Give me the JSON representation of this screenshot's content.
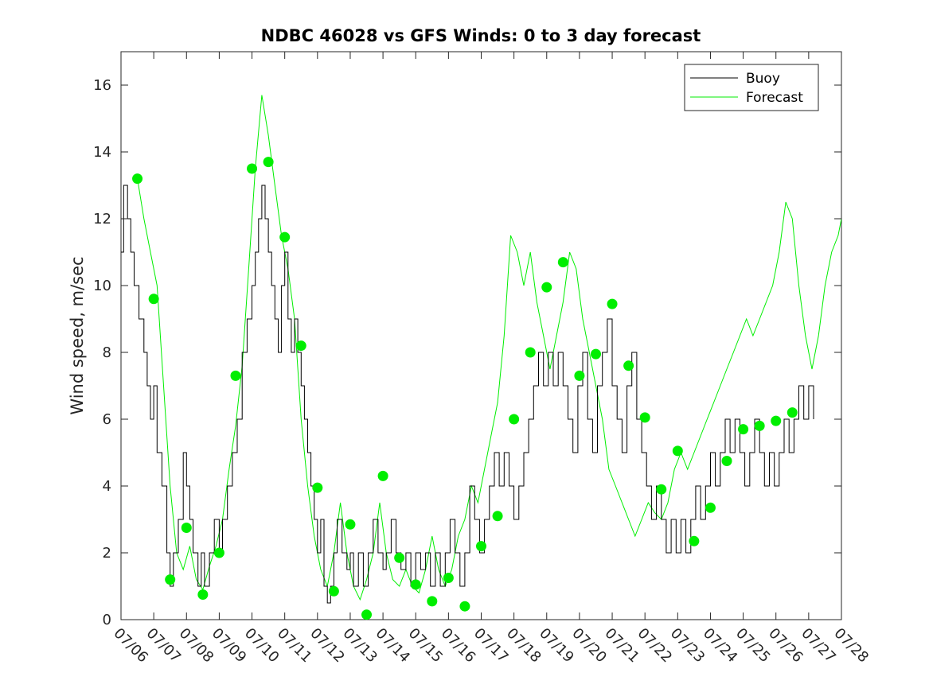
{
  "chart_data": {
    "type": "line",
    "title": "NDBC 46028 vs GFS Winds: 0 to 3 day forecast",
    "ylabel": "Wind speed, m/sec",
    "xlabel": "",
    "xlim": [
      0,
      22
    ],
    "ylim": [
      0,
      17
    ],
    "x_tick_labels": [
      "07/06",
      "07/07",
      "07/08",
      "07/09",
      "07/10",
      "07/11",
      "07/12",
      "07/13",
      "07/14",
      "07/15",
      "07/16",
      "07/17",
      "07/18",
      "07/19",
      "07/20",
      "07/21",
      "07/22",
      "07/23",
      "07/24",
      "07/25",
      "07/26",
      "07/27",
      "07/28"
    ],
    "y_ticks": [
      0,
      2,
      4,
      6,
      8,
      10,
      12,
      14,
      16
    ],
    "grid": false,
    "legend": {
      "position": "top-right",
      "entries": [
        "Buoy",
        "Forecast"
      ]
    },
    "colors": {
      "buoy": "#000000",
      "forecast": "#00ee00",
      "markers": "#00ee00"
    },
    "series": [
      {
        "name": "Buoy",
        "points": [
          [
            0.0,
            11
          ],
          [
            0.08,
            13
          ],
          [
            0.2,
            12
          ],
          [
            0.3,
            11
          ],
          [
            0.4,
            10
          ],
          [
            0.55,
            9
          ],
          [
            0.7,
            8
          ],
          [
            0.8,
            7
          ],
          [
            0.9,
            6
          ],
          [
            1.0,
            7
          ],
          [
            1.1,
            5
          ],
          [
            1.25,
            4
          ],
          [
            1.4,
            2
          ],
          [
            1.5,
            1
          ],
          [
            1.6,
            2
          ],
          [
            1.75,
            3
          ],
          [
            1.9,
            5
          ],
          [
            2.0,
            4
          ],
          [
            2.1,
            3
          ],
          [
            2.2,
            2
          ],
          [
            2.35,
            1
          ],
          [
            2.45,
            2
          ],
          [
            2.55,
            1
          ],
          [
            2.7,
            2
          ],
          [
            2.85,
            3
          ],
          [
            3.0,
            2
          ],
          [
            3.1,
            3
          ],
          [
            3.25,
            4
          ],
          [
            3.4,
            5
          ],
          [
            3.55,
            6
          ],
          [
            3.7,
            8
          ],
          [
            3.85,
            9
          ],
          [
            4.0,
            10
          ],
          [
            4.1,
            11
          ],
          [
            4.2,
            12
          ],
          [
            4.3,
            13
          ],
          [
            4.4,
            12
          ],
          [
            4.5,
            11
          ],
          [
            4.6,
            10
          ],
          [
            4.7,
            9
          ],
          [
            4.8,
            8
          ],
          [
            4.9,
            10
          ],
          [
            5.0,
            11
          ],
          [
            5.1,
            9
          ],
          [
            5.2,
            8
          ],
          [
            5.3,
            9
          ],
          [
            5.4,
            8
          ],
          [
            5.5,
            7
          ],
          [
            5.6,
            6
          ],
          [
            5.7,
            5
          ],
          [
            5.8,
            4
          ],
          [
            5.9,
            3
          ],
          [
            6.0,
            2
          ],
          [
            6.1,
            3
          ],
          [
            6.2,
            1
          ],
          [
            6.3,
            0.5
          ],
          [
            6.4,
            1
          ],
          [
            6.5,
            2
          ],
          [
            6.6,
            3
          ],
          [
            6.75,
            2
          ],
          [
            6.9,
            1.5
          ],
          [
            7.0,
            2
          ],
          [
            7.1,
            1
          ],
          [
            7.25,
            2
          ],
          [
            7.4,
            1
          ],
          [
            7.55,
            2
          ],
          [
            7.7,
            3
          ],
          [
            7.85,
            2
          ],
          [
            8.0,
            1.5
          ],
          [
            8.1,
            2
          ],
          [
            8.25,
            3
          ],
          [
            8.4,
            2
          ],
          [
            8.55,
            1.5
          ],
          [
            8.7,
            2
          ],
          [
            8.85,
            1
          ],
          [
            9.0,
            2
          ],
          [
            9.15,
            1.5
          ],
          [
            9.3,
            2
          ],
          [
            9.45,
            1
          ],
          [
            9.6,
            2
          ],
          [
            9.75,
            1
          ],
          [
            9.9,
            2
          ],
          [
            10.05,
            3
          ],
          [
            10.2,
            2
          ],
          [
            10.35,
            1
          ],
          [
            10.5,
            2
          ],
          [
            10.65,
            4
          ],
          [
            10.8,
            3
          ],
          [
            10.95,
            2
          ],
          [
            11.1,
            3
          ],
          [
            11.25,
            4
          ],
          [
            11.4,
            5
          ],
          [
            11.55,
            4
          ],
          [
            11.7,
            5
          ],
          [
            11.85,
            4
          ],
          [
            12.0,
            3
          ],
          [
            12.15,
            4
          ],
          [
            12.3,
            5
          ],
          [
            12.45,
            6
          ],
          [
            12.6,
            7
          ],
          [
            12.75,
            8
          ],
          [
            12.9,
            7
          ],
          [
            13.05,
            8
          ],
          [
            13.2,
            7
          ],
          [
            13.35,
            8
          ],
          [
            13.5,
            7
          ],
          [
            13.65,
            6
          ],
          [
            13.8,
            5
          ],
          [
            13.95,
            7
          ],
          [
            14.1,
            8
          ],
          [
            14.25,
            6
          ],
          [
            14.4,
            5
          ],
          [
            14.55,
            7
          ],
          [
            14.7,
            8
          ],
          [
            14.85,
            9
          ],
          [
            15.0,
            7
          ],
          [
            15.15,
            6
          ],
          [
            15.3,
            5
          ],
          [
            15.45,
            7
          ],
          [
            15.6,
            8
          ],
          [
            15.75,
            6
          ],
          [
            15.9,
            5
          ],
          [
            16.05,
            4
          ],
          [
            16.2,
            3
          ],
          [
            16.35,
            4
          ],
          [
            16.5,
            3
          ],
          [
            16.65,
            2
          ],
          [
            16.8,
            3
          ],
          [
            16.95,
            2
          ],
          [
            17.1,
            3
          ],
          [
            17.25,
            2
          ],
          [
            17.4,
            3
          ],
          [
            17.55,
            4
          ],
          [
            17.7,
            3
          ],
          [
            17.85,
            4
          ],
          [
            18.0,
            5
          ],
          [
            18.15,
            4
          ],
          [
            18.3,
            5
          ],
          [
            18.45,
            6
          ],
          [
            18.6,
            5
          ],
          [
            18.75,
            6
          ],
          [
            18.9,
            5
          ],
          [
            19.05,
            4
          ],
          [
            19.2,
            5
          ],
          [
            19.35,
            6
          ],
          [
            19.5,
            5
          ],
          [
            19.65,
            4
          ],
          [
            19.8,
            5
          ],
          [
            19.95,
            4
          ],
          [
            20.1,
            5
          ],
          [
            20.25,
            6
          ],
          [
            20.4,
            5
          ],
          [
            20.55,
            6
          ],
          [
            20.7,
            7
          ],
          [
            20.85,
            6
          ],
          [
            21.0,
            7
          ],
          [
            21.15,
            6
          ]
        ]
      },
      {
        "name": "Forecast",
        "points": [
          [
            0.5,
            13.2
          ],
          [
            0.7,
            12.0
          ],
          [
            0.9,
            11.0
          ],
          [
            1.1,
            10.0
          ],
          [
            1.3,
            7.0
          ],
          [
            1.5,
            4.0
          ],
          [
            1.7,
            2.0
          ],
          [
            1.9,
            1.5
          ],
          [
            2.1,
            2.2
          ],
          [
            2.3,
            1.2
          ],
          [
            2.5,
            0.9
          ],
          [
            2.7,
            1.6
          ],
          [
            2.9,
            2.2
          ],
          [
            3.1,
            3.0
          ],
          [
            3.3,
            4.5
          ],
          [
            3.5,
            5.8
          ],
          [
            3.7,
            7.6
          ],
          [
            3.9,
            10.5
          ],
          [
            4.1,
            13.5
          ],
          [
            4.3,
            15.7
          ],
          [
            4.5,
            14.5
          ],
          [
            4.7,
            13.0
          ],
          [
            4.9,
            11.5
          ],
          [
            5.1,
            10.5
          ],
          [
            5.3,
            9.0
          ],
          [
            5.5,
            6.0
          ],
          [
            5.7,
            4.0
          ],
          [
            5.9,
            2.5
          ],
          [
            6.1,
            1.5
          ],
          [
            6.3,
            1.0
          ],
          [
            6.5,
            2.0
          ],
          [
            6.7,
            3.5
          ],
          [
            6.9,
            2.0
          ],
          [
            7.1,
            1.0
          ],
          [
            7.3,
            0.6
          ],
          [
            7.5,
            1.2
          ],
          [
            7.7,
            2.0
          ],
          [
            7.9,
            3.5
          ],
          [
            8.1,
            2.0
          ],
          [
            8.3,
            1.2
          ],
          [
            8.5,
            1.0
          ],
          [
            8.7,
            1.5
          ],
          [
            8.9,
            1.0
          ],
          [
            9.1,
            0.8
          ],
          [
            9.3,
            1.5
          ],
          [
            9.5,
            2.5
          ],
          [
            9.7,
            1.5
          ],
          [
            9.9,
            1.0
          ],
          [
            10.1,
            1.5
          ],
          [
            10.3,
            2.5
          ],
          [
            10.5,
            3.0
          ],
          [
            10.7,
            4.0
          ],
          [
            10.9,
            3.5
          ],
          [
            11.1,
            4.5
          ],
          [
            11.3,
            5.5
          ],
          [
            11.5,
            6.5
          ],
          [
            11.7,
            8.5
          ],
          [
            11.9,
            11.5
          ],
          [
            12.1,
            11.0
          ],
          [
            12.3,
            10.0
          ],
          [
            12.5,
            11.0
          ],
          [
            12.7,
            9.5
          ],
          [
            12.9,
            8.5
          ],
          [
            13.1,
            7.5
          ],
          [
            13.3,
            8.5
          ],
          [
            13.5,
            9.5
          ],
          [
            13.7,
            11.0
          ],
          [
            13.9,
            10.5
          ],
          [
            14.1,
            9.0
          ],
          [
            14.3,
            8.0
          ],
          [
            14.5,
            7.0
          ],
          [
            14.7,
            6.0
          ],
          [
            14.9,
            4.5
          ],
          [
            15.1,
            4.0
          ],
          [
            15.3,
            3.5
          ],
          [
            15.5,
            3.0
          ],
          [
            15.7,
            2.5
          ],
          [
            15.9,
            3.0
          ],
          [
            16.1,
            3.5
          ],
          [
            16.3,
            3.2
          ],
          [
            16.5,
            3.0
          ],
          [
            16.7,
            3.5
          ],
          [
            16.9,
            4.5
          ],
          [
            17.1,
            5.0
          ],
          [
            17.3,
            4.5
          ],
          [
            17.5,
            5.0
          ],
          [
            17.7,
            5.5
          ],
          [
            17.9,
            6.0
          ],
          [
            18.1,
            6.5
          ],
          [
            18.3,
            7.0
          ],
          [
            18.5,
            7.5
          ],
          [
            18.7,
            8.0
          ],
          [
            18.9,
            8.5
          ],
          [
            19.1,
            9.0
          ],
          [
            19.3,
            8.5
          ],
          [
            19.5,
            9.0
          ],
          [
            19.7,
            9.5
          ],
          [
            19.9,
            10.0
          ],
          [
            20.1,
            11.0
          ],
          [
            20.3,
            12.5
          ],
          [
            20.5,
            12.0
          ],
          [
            20.7,
            10.0
          ],
          [
            20.9,
            8.5
          ],
          [
            21.1,
            7.5
          ],
          [
            21.3,
            8.5
          ],
          [
            21.5,
            10.0
          ],
          [
            21.7,
            11.0
          ],
          [
            21.9,
            11.5
          ],
          [
            22.0,
            12.0
          ]
        ]
      }
    ],
    "markers": [
      [
        0.5,
        13.2
      ],
      [
        1.0,
        9.6
      ],
      [
        1.5,
        1.2
      ],
      [
        2.0,
        2.75
      ],
      [
        2.5,
        0.75
      ],
      [
        3.0,
        2.0
      ],
      [
        3.5,
        7.3
      ],
      [
        4.0,
        13.5
      ],
      [
        4.5,
        13.7
      ],
      [
        5.0,
        11.45
      ],
      [
        5.5,
        8.2
      ],
      [
        6.0,
        3.95
      ],
      [
        6.5,
        0.85
      ],
      [
        7.0,
        2.85
      ],
      [
        7.5,
        0.15
      ],
      [
        8.0,
        4.3
      ],
      [
        8.5,
        1.85
      ],
      [
        9.0,
        1.05
      ],
      [
        9.5,
        0.55
      ],
      [
        10.0,
        1.25
      ],
      [
        10.5,
        0.4
      ],
      [
        11.0,
        2.2
      ],
      [
        11.5,
        3.1
      ],
      [
        12.0,
        6.0
      ],
      [
        12.5,
        8.0
      ],
      [
        13.0,
        9.95
      ],
      [
        13.5,
        10.7
      ],
      [
        14.0,
        7.3
      ],
      [
        14.5,
        7.95
      ],
      [
        15.0,
        9.45
      ],
      [
        15.5,
        7.6
      ],
      [
        16.0,
        6.05
      ],
      [
        16.5,
        3.9
      ],
      [
        17.0,
        5.05
      ],
      [
        17.5,
        2.35
      ],
      [
        18.0,
        3.35
      ],
      [
        18.5,
        4.75
      ],
      [
        19.0,
        5.7
      ],
      [
        19.5,
        5.8
      ],
      [
        20.0,
        5.95
      ],
      [
        20.5,
        6.2
      ]
    ]
  }
}
